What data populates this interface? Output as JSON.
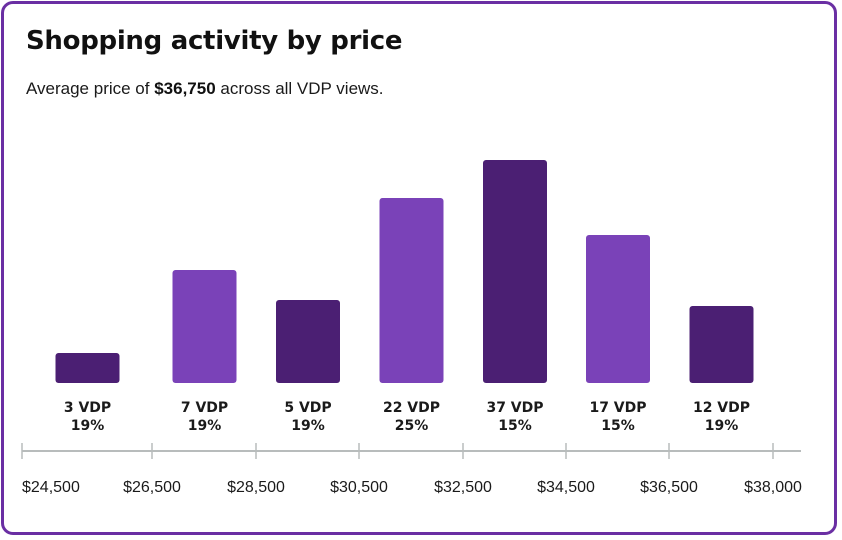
{
  "header": {
    "title": "Shopping activity by price",
    "subtitle_prefix": "Average price of ",
    "subtitle_value": "$36,750",
    "subtitle_suffix": " across all VDP views."
  },
  "colors": {
    "border": "#6a2fa3",
    "dark_bar": "#4b1f73",
    "light_bar": "#7a42b8",
    "axis": "#b8bcbc"
  },
  "chart_data": {
    "type": "bar",
    "categories": [
      "$24,500–$26,500",
      "$26,500–$28,500",
      "$28,500–$30,500",
      "$30,500–$32,500",
      "$32,500–$34,500",
      "$34,500–$36,500",
      "$36,500–$38,000"
    ],
    "values": [
      3,
      7,
      5,
      22,
      37,
      17,
      12
    ],
    "bar_heights_relative": [
      30,
      113,
      83,
      185,
      223,
      148,
      77
    ],
    "value_labels": [
      "3 VDP",
      "7 VDP",
      "5 VDP",
      "22 VDP",
      "37 VDP",
      "17 VDP",
      "12 VDP"
    ],
    "percent_labels": [
      "19%",
      "19%",
      "19%",
      "25%",
      "15%",
      "15%",
      "19%"
    ],
    "bar_colors": [
      "dark",
      "light",
      "dark",
      "light",
      "dark",
      "light",
      "dark"
    ],
    "x_ticks": [
      "$24,500",
      "$26,500",
      "$28,500",
      "$30,500",
      "$32,500",
      "$34,500",
      "$36,500",
      "$38,000"
    ],
    "title": "Shopping activity by price",
    "xlabel": "",
    "ylabel": "",
    "grid": false,
    "legend": "none"
  }
}
